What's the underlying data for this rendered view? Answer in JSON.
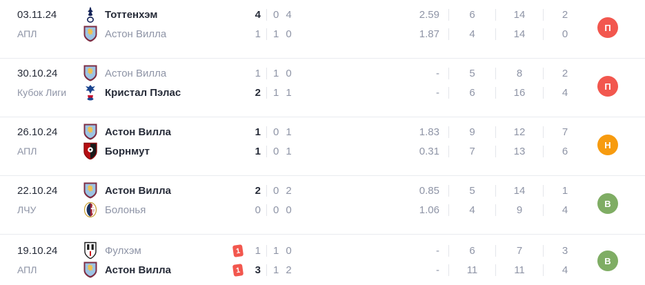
{
  "table": {
    "rows": [
      {
        "date": "03.11.24",
        "competition": "АПЛ",
        "result": {
          "label": "П",
          "code": "loss",
          "color": "#f2574e"
        },
        "teams": [
          {
            "name": "Тоттенхэм",
            "logo": "tottenham",
            "emphasis": true,
            "red_cards": "",
            "score": "4",
            "halves": [
              "0",
              "4"
            ],
            "metrics": [
              "2.59",
              "6",
              "14",
              "2"
            ]
          },
          {
            "name": "Астон Вилла",
            "logo": "aston-villa",
            "emphasis": false,
            "red_cards": "",
            "score": "1",
            "halves": [
              "1",
              "0"
            ],
            "metrics": [
              "1.87",
              "4",
              "14",
              "0"
            ]
          }
        ]
      },
      {
        "date": "30.10.24",
        "competition": "Кубок Лиги",
        "result": {
          "label": "П",
          "code": "loss",
          "color": "#f2574e"
        },
        "teams": [
          {
            "name": "Астон Вилла",
            "logo": "aston-villa",
            "emphasis": false,
            "red_cards": "",
            "score": "1",
            "halves": [
              "1",
              "0"
            ],
            "metrics": [
              "-",
              "5",
              "8",
              "2"
            ]
          },
          {
            "name": "Кристал Пэлас",
            "logo": "crystal-palace",
            "emphasis": true,
            "red_cards": "",
            "score": "2",
            "halves": [
              "1",
              "1"
            ],
            "metrics": [
              "-",
              "6",
              "16",
              "4"
            ]
          }
        ]
      },
      {
        "date": "26.10.24",
        "competition": "АПЛ",
        "result": {
          "label": "Н",
          "code": "draw",
          "color": "#f79b0f"
        },
        "teams": [
          {
            "name": "Астон Вилла",
            "logo": "aston-villa",
            "emphasis": true,
            "red_cards": "",
            "score": "1",
            "halves": [
              "0",
              "1"
            ],
            "metrics": [
              "1.83",
              "9",
              "12",
              "7"
            ]
          },
          {
            "name": "Борнмут",
            "logo": "bournemouth",
            "emphasis": true,
            "red_cards": "",
            "score": "1",
            "halves": [
              "0",
              "1"
            ],
            "metrics": [
              "0.31",
              "7",
              "13",
              "6"
            ]
          }
        ]
      },
      {
        "date": "22.10.24",
        "competition": "ЛЧУ",
        "result": {
          "label": "В",
          "code": "win",
          "color": "#7fad64"
        },
        "teams": [
          {
            "name": "Астон Вилла",
            "logo": "aston-villa",
            "emphasis": true,
            "red_cards": "",
            "score": "2",
            "halves": [
              "0",
              "2"
            ],
            "metrics": [
              "0.85",
              "5",
              "14",
              "1"
            ]
          },
          {
            "name": "Болонья",
            "logo": "bologna",
            "emphasis": false,
            "red_cards": "",
            "score": "0",
            "halves": [
              "0",
              "0"
            ],
            "metrics": [
              "1.06",
              "4",
              "9",
              "4"
            ]
          }
        ]
      },
      {
        "date": "19.10.24",
        "competition": "АПЛ",
        "result": {
          "label": "В",
          "code": "win",
          "color": "#7fad64"
        },
        "teams": [
          {
            "name": "Фулхэм",
            "logo": "fulham",
            "emphasis": false,
            "red_cards": "1",
            "score": "1",
            "halves": [
              "1",
              "0"
            ],
            "metrics": [
              "-",
              "6",
              "7",
              "3"
            ]
          },
          {
            "name": "Астон Вилла",
            "logo": "aston-villa",
            "emphasis": true,
            "red_cards": "1",
            "score": "3",
            "halves": [
              "1",
              "2"
            ],
            "metrics": [
              "-",
              "11",
              "11",
              "4"
            ]
          }
        ]
      }
    ]
  },
  "colors": {
    "loss_badge": "#f2574e",
    "draw_badge": "#f79b0f",
    "win_badge": "#7fad64",
    "red_card": "#f2574e"
  }
}
